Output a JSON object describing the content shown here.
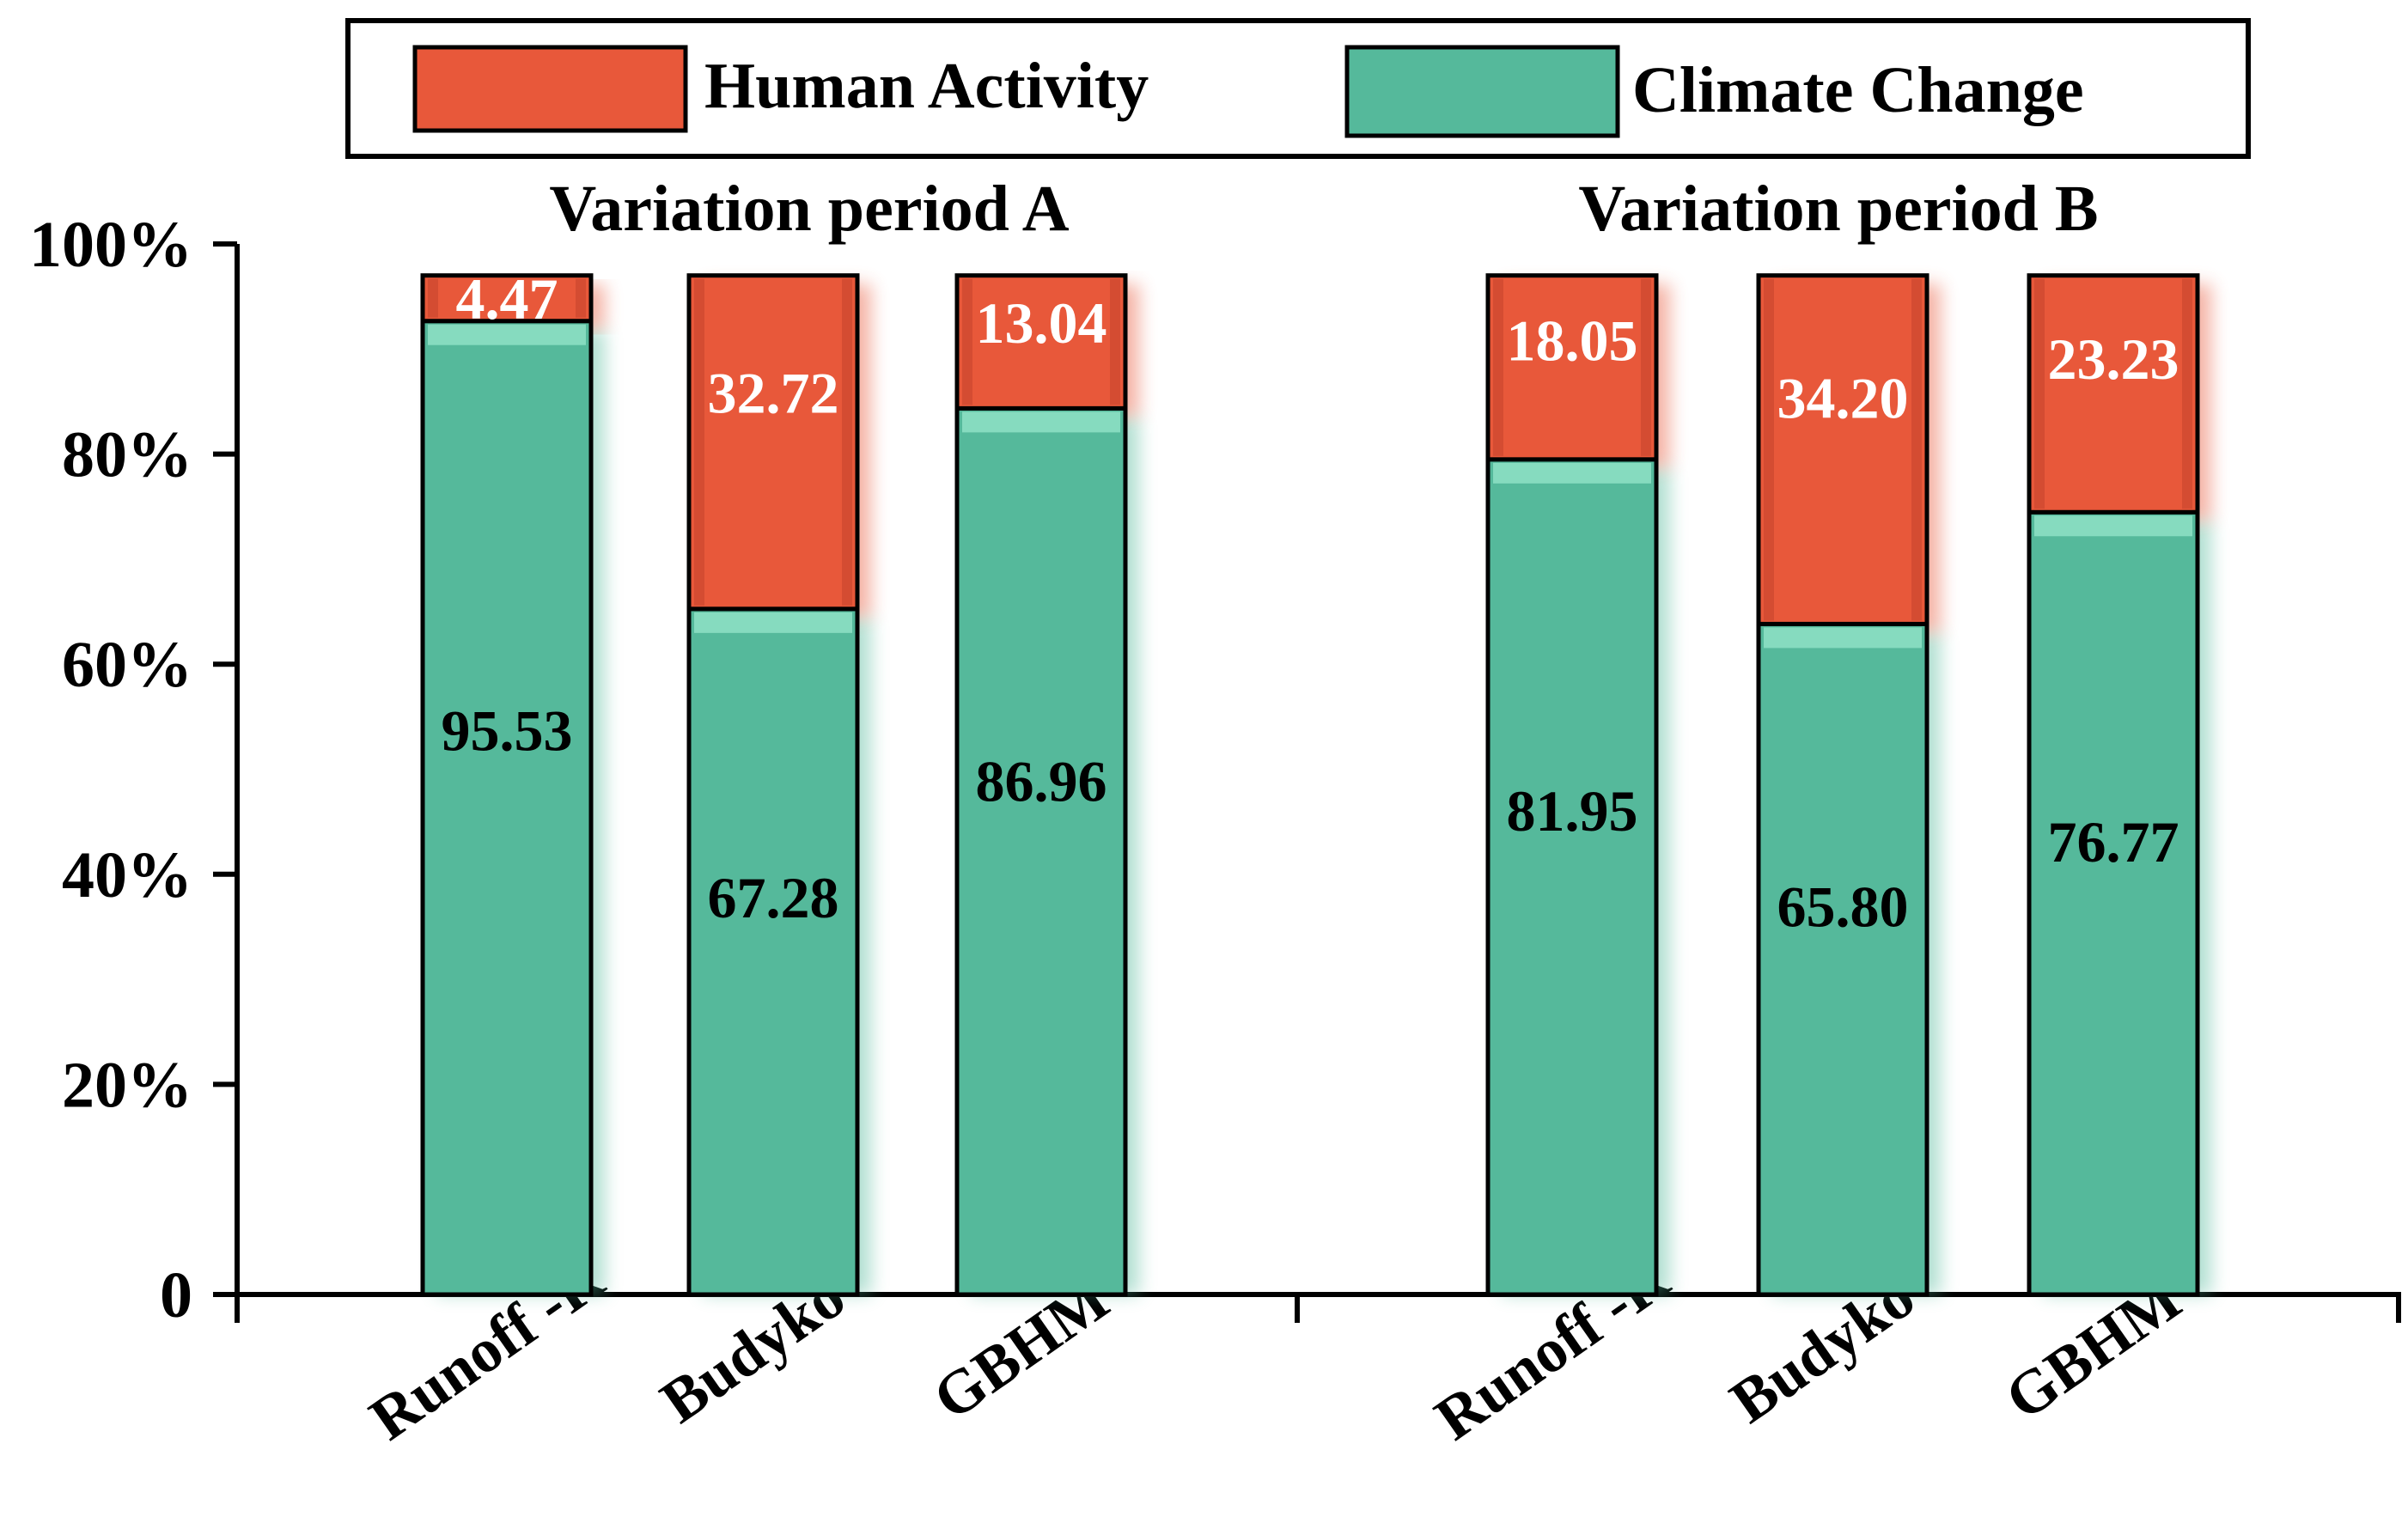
{
  "chart_data": {
    "type": "bar",
    "stacked": true,
    "colors": {
      "human": "#E8583A",
      "climate": "#55B99B",
      "human_top": "#F27B5F",
      "climate_top": "#8FE0C6",
      "axis": "#000000",
      "value_text_human": "#FFFFFF",
      "value_text_climate": "#000000"
    },
    "legend": {
      "position": "top",
      "items": [
        {
          "label": "Human Activity",
          "color": "#E8583A"
        },
        {
          "label": "Climate Change",
          "color": "#55B99B"
        }
      ]
    },
    "y_axis": {
      "ylim": [
        0,
        100
      ],
      "ticks": [
        {
          "value": 0,
          "label": "0"
        },
        {
          "value": 20,
          "label": "20%"
        },
        {
          "value": 40,
          "label": "40%"
        },
        {
          "value": 60,
          "label": "60%"
        },
        {
          "value": 80,
          "label": "80%"
        },
        {
          "value": 100,
          "label": "100%"
        }
      ]
    },
    "groups": [
      {
        "title": "Variation period A",
        "categories": [
          "Runoff -R",
          "Budyko",
          "GBHM"
        ],
        "series": [
          {
            "name": "Climate Change",
            "values": [
              95.53,
              67.28,
              86.96
            ],
            "labels": [
              "95.53",
              "67.28",
              "86.96"
            ]
          },
          {
            "name": "Human Activity",
            "values": [
              4.47,
              32.72,
              13.04
            ],
            "labels": [
              "4.47",
              "32.72",
              "13.04"
            ]
          }
        ]
      },
      {
        "title": "Variation period B",
        "categories": [
          "Runoff -R",
          "Budyko",
          "GBHM"
        ],
        "series": [
          {
            "name": "Climate Change",
            "values": [
              81.95,
              65.8,
              76.77
            ],
            "labels": [
              "81.95",
              "65.80",
              "76.77"
            ]
          },
          {
            "name": "Human Activity",
            "values": [
              18.05,
              34.2,
              23.23
            ],
            "labels": [
              "18.05",
              "34.20",
              "23.23"
            ]
          }
        ]
      }
    ]
  }
}
